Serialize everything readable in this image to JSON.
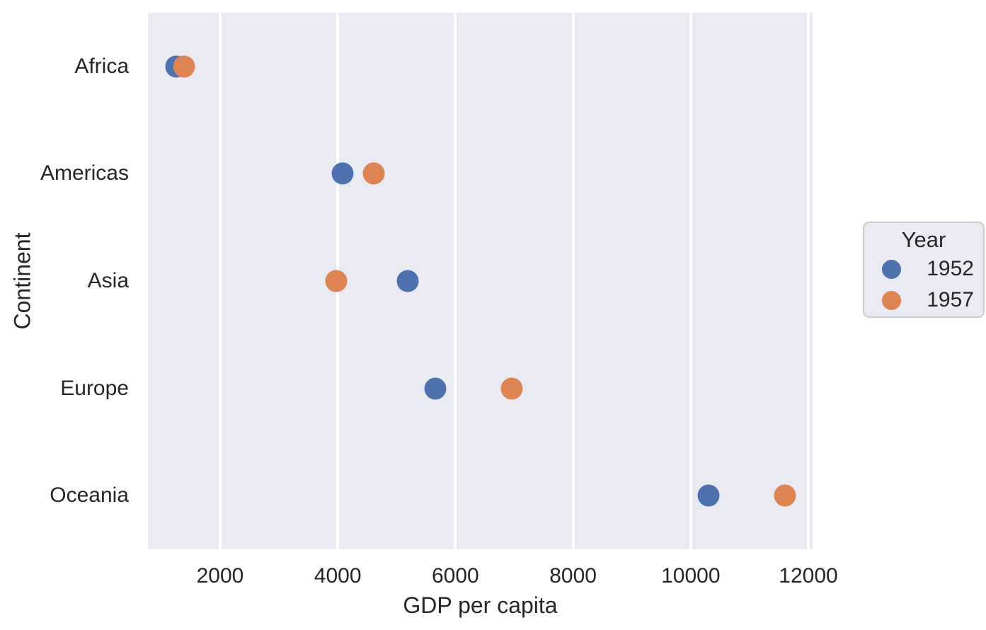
{
  "chart_data": {
    "type": "scatter",
    "orientation": "horizontal-categorical",
    "title": "",
    "xlabel": "GDP per capita",
    "ylabel": "Continent",
    "categories": [
      "Africa",
      "Americas",
      "Asia",
      "Europe",
      "Oceania"
    ],
    "series": [
      {
        "name": "1952",
        "color": "#4c72b0",
        "values": [
          1253,
          4079,
          5195,
          5661,
          10298
        ]
      },
      {
        "name": "1957",
        "color": "#dd8452",
        "values": [
          1385,
          4616,
          3975,
          6963,
          11599
        ]
      }
    ],
    "x_ticks": [
      2000,
      4000,
      6000,
      8000,
      10000,
      12000
    ],
    "xlim": [
      773,
      12072
    ],
    "grid": "vertical-only",
    "legend": {
      "title": "Year",
      "position": "right-outside"
    },
    "style": {
      "plot_bg": "#eaeaf2",
      "grid_color": "#ffffff",
      "text_color": "#262626",
      "point_color_1952": "#4c72b0",
      "point_color_1957": "#dd8452",
      "legend_bg": "#eaeaf2",
      "legend_border": "#cccccc"
    }
  }
}
